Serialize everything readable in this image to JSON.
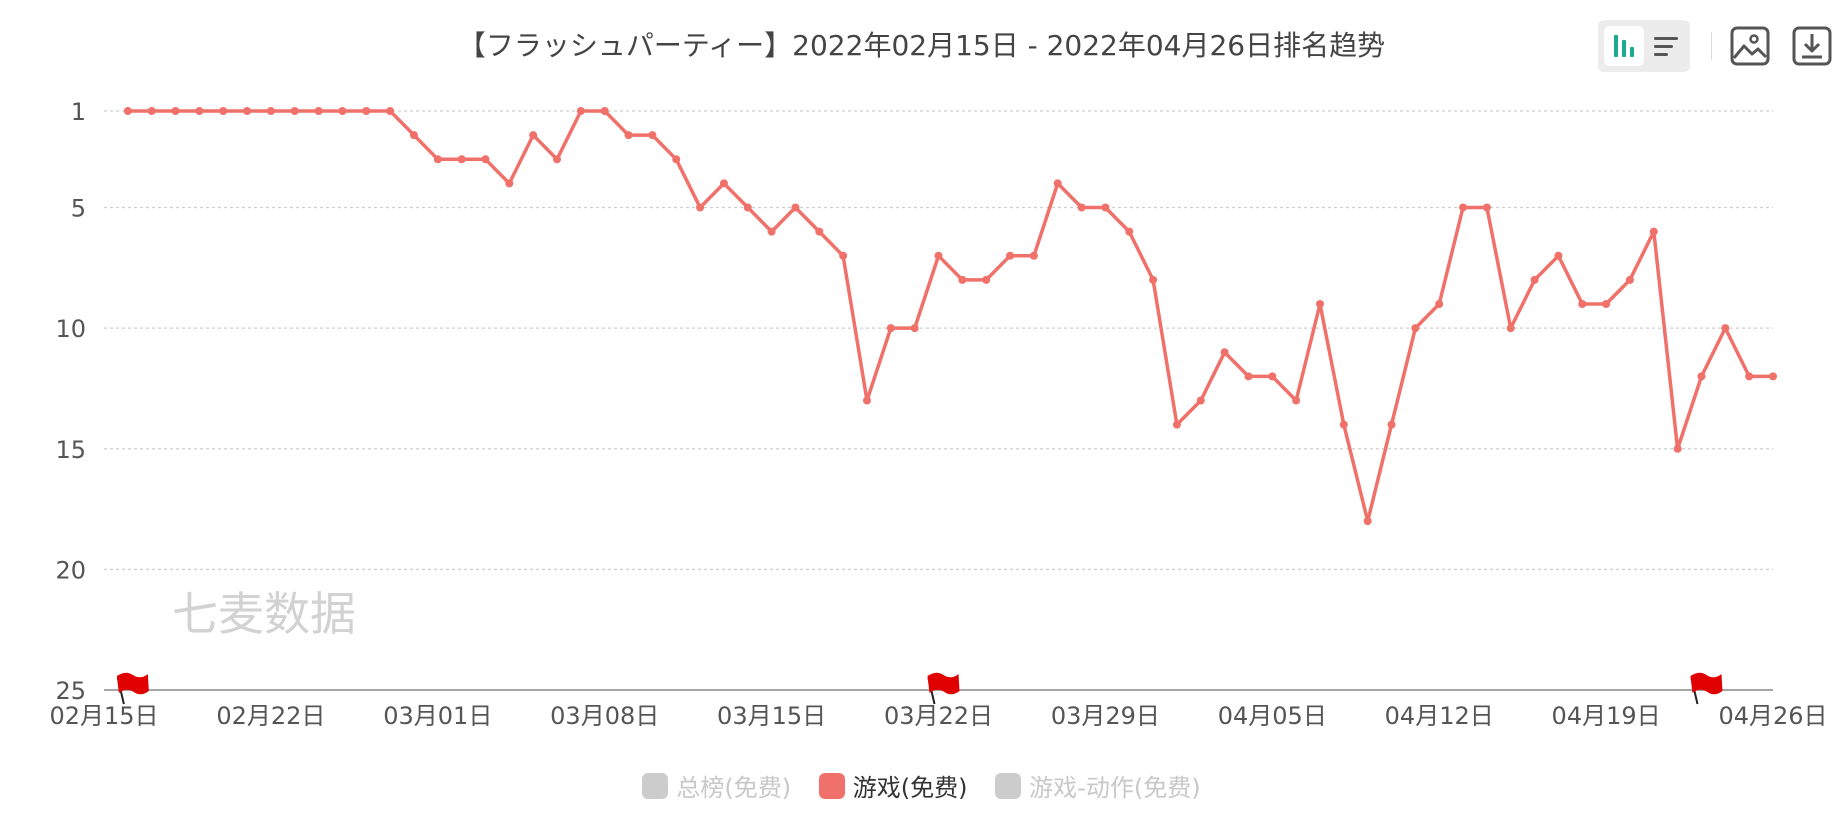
{
  "title": "【フラッシュパーティー】2022年02月15日 - 2022年04月26日排名趋势",
  "toolbar": {
    "chart_view_icon": "bar-chart-icon",
    "list_view_icon": "list-view-icon",
    "save_image_icon": "image-icon",
    "download_icon": "download-icon",
    "accent_color": "#1aac8c",
    "icon_color": "#555555"
  },
  "watermark": "七麦数据",
  "legend": [
    {
      "label": "总榜(免费)",
      "color": "#cccccc",
      "active": false
    },
    {
      "label": "游戏(免费)",
      "color": "#f0706a",
      "active": true
    },
    {
      "label": "游戏-动作(免费)",
      "color": "#cccccc",
      "active": false
    }
  ],
  "chart_data": {
    "type": "line",
    "title": "【フラッシュパーティー】2022年02月15日 - 2022年04月26日排名趋势",
    "xlabel": "",
    "ylabel": "",
    "y_inverted": true,
    "ylim": [
      1,
      25
    ],
    "y_ticks": [
      1,
      5,
      10,
      15,
      20,
      25
    ],
    "x_tick_labels": [
      "02月15日",
      "02月22日",
      "03月01日",
      "03月08日",
      "03月15日",
      "03月22日",
      "03月29日",
      "04月05日",
      "04月12日",
      "04月19日",
      "04月26日"
    ],
    "xlim": [
      "02月15日",
      "04月26日"
    ],
    "grid": true,
    "legend_position": "bottom-center",
    "series": [
      {
        "name": "游戏(免费)",
        "color": "#f0706a",
        "x": [
          "02月16日",
          "02月17日",
          "02月18日",
          "02月19日",
          "02月20日",
          "02月21日",
          "02月22日",
          "02月23日",
          "02月24日",
          "02月25日",
          "02月26日",
          "02月27日",
          "02月28日",
          "03月01日",
          "03月02日",
          "03月03日",
          "03月04日",
          "03月05日",
          "03月06日",
          "03月07日",
          "03月08日",
          "03月09日",
          "03月10日",
          "03月11日",
          "03月12日",
          "03月13日",
          "03月14日",
          "03月15日",
          "03月16日",
          "03月17日",
          "03月18日",
          "03月19日",
          "03月20日",
          "03月21日",
          "03月22日",
          "03月23日",
          "03月24日",
          "03月25日",
          "03月26日",
          "03月27日",
          "03月28日",
          "03月29日",
          "03月30日",
          "03月31日",
          "04月01日",
          "04月02日",
          "04月03日",
          "04月04日",
          "04月05日",
          "04月06日",
          "04月07日",
          "04月08日",
          "04月09日",
          "04月10日",
          "04月11日",
          "04月12日",
          "04月13日",
          "04月14日",
          "04月15日",
          "04月16日",
          "04月17日",
          "04月18日",
          "04月19日",
          "04月20日",
          "04月21日",
          "04月22日",
          "04月23日",
          "04月24日",
          "04月25日",
          "04月26日"
        ],
        "values": [
          1,
          1,
          1,
          1,
          1,
          1,
          1,
          1,
          1,
          1,
          1,
          1,
          2,
          3,
          3,
          3,
          4,
          2,
          3,
          1,
          1,
          2,
          2,
          3,
          5,
          4,
          5,
          6,
          5,
          6,
          7,
          13,
          10,
          10,
          7,
          8,
          8,
          7,
          7,
          4,
          5,
          5,
          6,
          8,
          14,
          13,
          11,
          12,
          12,
          13,
          9,
          14,
          18,
          14,
          10,
          9,
          5,
          5,
          10,
          8,
          7,
          9,
          9,
          8,
          6,
          15,
          12,
          10,
          12,
          12
        ]
      }
    ],
    "markers": [
      {
        "type": "flag",
        "x": "02月16日"
      },
      {
        "type": "flag",
        "x": "03月22日"
      },
      {
        "type": "flag",
        "x": "04月23日"
      }
    ]
  }
}
